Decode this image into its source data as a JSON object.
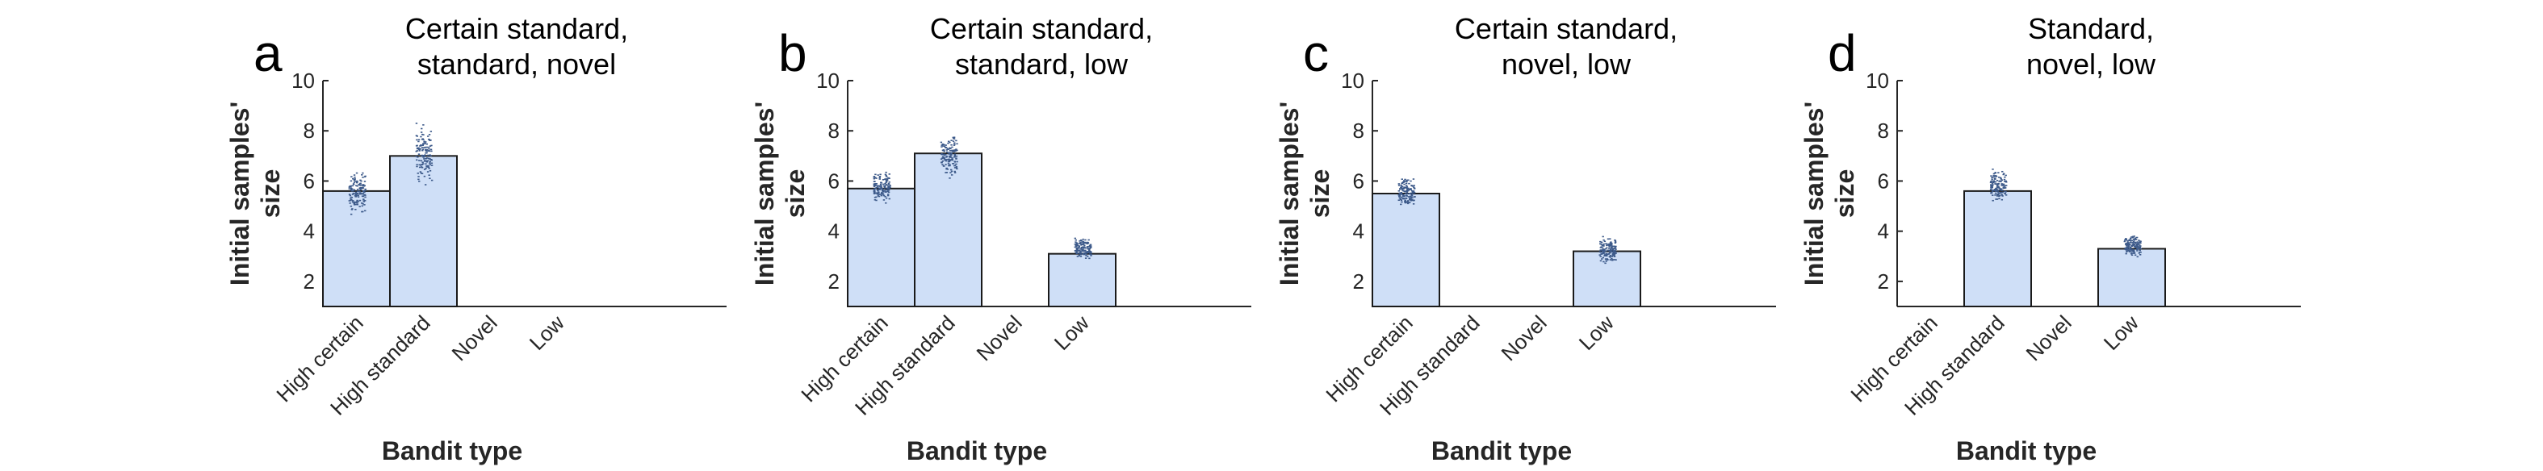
{
  "colors": {
    "bar_fill": "#cfdff7",
    "bar_edge": "#1a1a1a",
    "points": "#3d5a8a",
    "axis": "#262626"
  },
  "chart_data": [
    {
      "type": "bar",
      "panel": "a",
      "title": [
        "Certain standard,",
        "standard, novel"
      ],
      "categories": [
        "High certain",
        "High standard",
        "Novel",
        "Low"
      ],
      "values": [
        5.6,
        7.0,
        null,
        null
      ],
      "point_spread": [
        [
          4.4,
          6.7
        ],
        [
          5.7,
          8.4
        ],
        null,
        null
      ],
      "xlabel": "Bandit type",
      "ylabel": [
        "Initial samples'",
        "size"
      ],
      "ylim": [
        1,
        10
      ],
      "yticks": [
        2,
        4,
        6,
        8,
        10
      ]
    },
    {
      "type": "bar",
      "panel": "b",
      "title": [
        "Certain standard,",
        "standard, low"
      ],
      "categories": [
        "High certain",
        "High standard",
        "Novel",
        "Low"
      ],
      "values": [
        5.7,
        7.1,
        null,
        3.1
      ],
      "point_spread": [
        [
          5.0,
          6.5
        ],
        [
          5.9,
          8.1
        ],
        null,
        [
          2.7,
          3.8
        ]
      ],
      "xlabel": "Bandit type",
      "ylabel": [
        "Initial samples'",
        "size"
      ],
      "ylim": [
        1,
        10
      ],
      "yticks": [
        2,
        4,
        6,
        8,
        10
      ]
    },
    {
      "type": "bar",
      "panel": "c",
      "title": [
        "Certain standard,",
        "novel, low"
      ],
      "categories": [
        "High certain",
        "High standard",
        "Novel",
        "Low"
      ],
      "values": [
        5.5,
        null,
        null,
        3.2
      ],
      "point_spread": [
        [
          4.8,
          6.3
        ],
        null,
        null,
        [
          2.6,
          3.9
        ]
      ],
      "xlabel": "Bandit type",
      "ylabel": [
        "Initial samples'",
        "size"
      ],
      "ylim": [
        1,
        10
      ],
      "yticks": [
        2,
        4,
        6,
        8,
        10
      ]
    },
    {
      "type": "bar",
      "panel": "d",
      "title": [
        "Standard,",
        "novel, low"
      ],
      "categories": [
        "High certain",
        "High standard",
        "Novel",
        "Low"
      ],
      "values": [
        null,
        5.6,
        null,
        3.3
      ],
      "point_spread": [
        null,
        [
          5.0,
          6.6
        ],
        null,
        [
          2.8,
          4.0
        ]
      ],
      "xlabel": "Bandit type",
      "ylabel": [
        "Initial samples'",
        "size"
      ],
      "ylim": [
        1,
        10
      ],
      "yticks": [
        2,
        4,
        6,
        8,
        10
      ]
    }
  ]
}
